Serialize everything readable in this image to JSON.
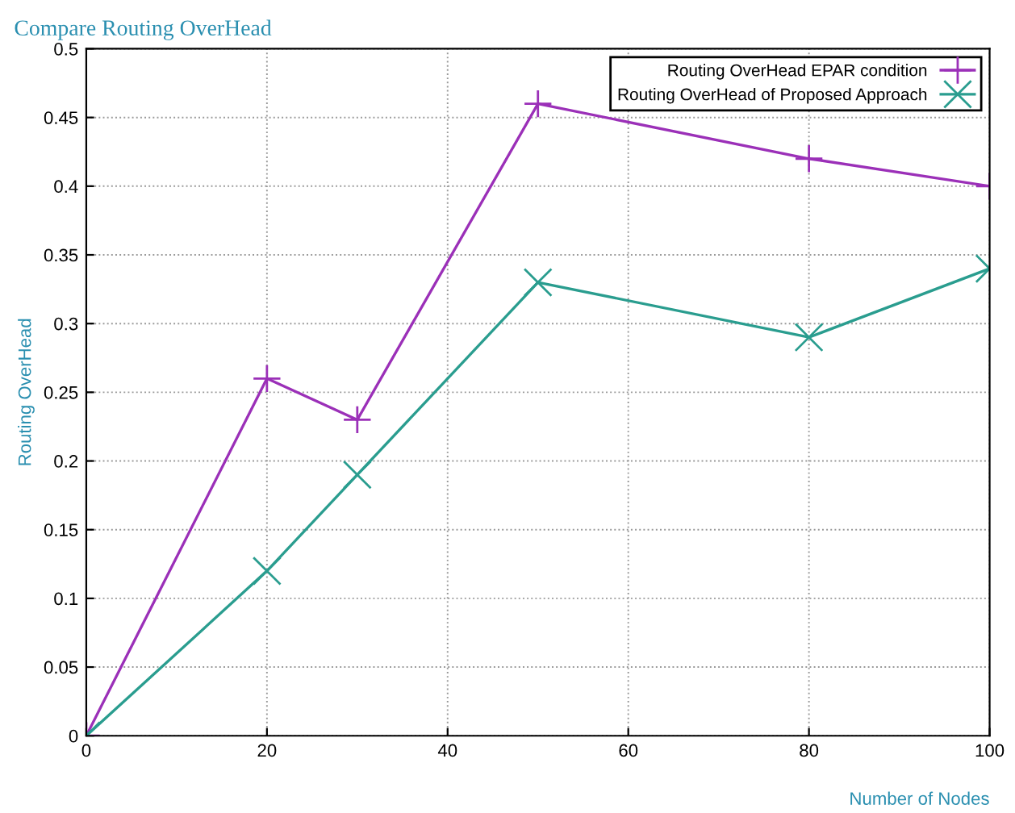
{
  "chart_data": {
    "type": "line",
    "title": "Compare Routing OverHead",
    "xlabel": "Number of Nodes",
    "ylabel": "Routing OverHead",
    "series": [
      {
        "name": "Routing OverHead EPAR condition",
        "color": "#9b30b8",
        "marker": "cross",
        "x": [
          0,
          20,
          30,
          50,
          80,
          100
        ],
        "values": [
          0,
          0.26,
          0.23,
          0.46,
          0.42,
          0.4
        ]
      },
      {
        "name": "Routing OverHead of Proposed Approach",
        "color": "#2a9d8f",
        "marker": "cross",
        "x": [
          0,
          20,
          30,
          50,
          80,
          100
        ],
        "values": [
          0,
          0.12,
          0.19,
          0.33,
          0.29,
          0.34
        ]
      }
    ],
    "xlim": [
      0,
      100
    ],
    "xticks": [
      0,
      20,
      40,
      60,
      80,
      100
    ],
    "ylim": [
      0,
      0.5
    ],
    "yticks": [
      0,
      0.05,
      0.1,
      0.15,
      0.2,
      0.25,
      0.3,
      0.35,
      0.4,
      0.45,
      0.5
    ],
    "grid": true,
    "legend": "top right",
    "line_style": "solid"
  }
}
